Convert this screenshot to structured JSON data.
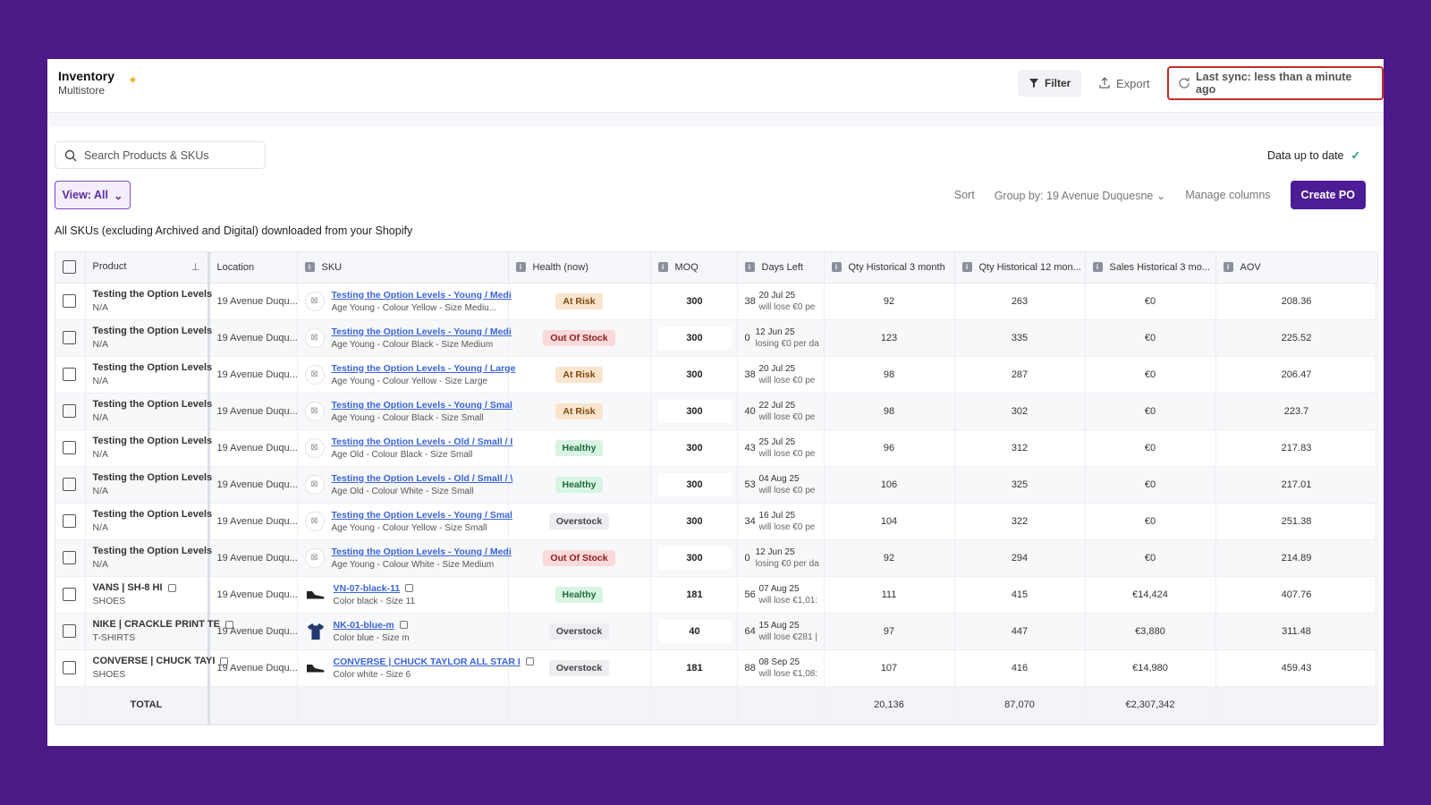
{
  "header": {
    "title": "Inventory",
    "subtitle": "Multistore",
    "filter_label": "Filter",
    "export_label": "Export",
    "sync_label": "Last sync: less than a minute ago"
  },
  "toolbar": {
    "search_placeholder": "Search Products & SKUs",
    "status": "Data up to date",
    "view_label": "View: All",
    "sort_label": "Sort",
    "group_label": "Group by: 19 Avenue Duquesne",
    "manage_label": "Manage columns",
    "create_label": "Create PO",
    "description": "All SKUs (excluding Archived and Digital) downloaded from your Shopify"
  },
  "columns": {
    "product": "Product",
    "location": "Location",
    "sku": "SKU",
    "health": "Health (now)",
    "moq": "MOQ",
    "days_left": "Days Left",
    "qty3": "Qty Historical 3 month",
    "qty12": "Qty Historical 12 mon...",
    "sales3": "Sales Historical 3 mo...",
    "aov": "AOV"
  },
  "rows": [
    {
      "product": "Testing the Option Levels",
      "category": "N/A",
      "location": "19 Avenue Duqu...",
      "sku": "Testing the Option Levels - Young / Medi",
      "variant": "Age Young - Colour Yellow - Size Mediu...",
      "thumb": "placeholder",
      "health": "At Risk",
      "moq": "300",
      "days": "38",
      "date": "20 Jul 25",
      "note": "will lose €0 pe",
      "qty3": "92",
      "qty12": "263",
      "sales3": "€0",
      "aov": "208.36"
    },
    {
      "product": "Testing the Option Levels",
      "category": "N/A",
      "location": "19 Avenue Duqu...",
      "sku": "Testing the Option Levels - Young / Medi",
      "variant": "Age Young - Colour Black - Size Medium",
      "thumb": "placeholder",
      "health": "Out Of Stock",
      "moq": "300",
      "days": "0",
      "date": "12 Jun 25",
      "note": "losing €0 per da",
      "qty3": "123",
      "qty12": "335",
      "sales3": "€0",
      "aov": "225.52"
    },
    {
      "product": "Testing the Option Levels",
      "category": "N/A",
      "location": "19 Avenue Duqu...",
      "sku": "Testing the Option Levels - Young / Large",
      "variant": "Age Young - Colour Yellow - Size Large",
      "thumb": "placeholder",
      "health": "At Risk",
      "moq": "300",
      "days": "38",
      "date": "20 Jul 25",
      "note": "will lose €0 pe",
      "qty3": "98",
      "qty12": "287",
      "sales3": "€0",
      "aov": "206.47"
    },
    {
      "product": "Testing the Option Levels",
      "category": "N/A",
      "location": "19 Avenue Duqu...",
      "sku": "Testing the Option Levels - Young / Smal",
      "variant": "Age Young - Colour Black - Size Small",
      "thumb": "placeholder",
      "health": "At Risk",
      "moq": "300",
      "days": "40",
      "date": "22 Jul 25",
      "note": "will lose €0 pe",
      "qty3": "98",
      "qty12": "302",
      "sales3": "€0",
      "aov": "223.7"
    },
    {
      "product": "Testing the Option Levels",
      "category": "N/A",
      "location": "19 Avenue Duqu...",
      "sku": "Testing the Option Levels - Old / Small / I",
      "variant": "Age Old - Colour Black - Size Small",
      "thumb": "placeholder",
      "health": "Healthy",
      "moq": "300",
      "days": "43",
      "date": "25 Jul 25",
      "note": "will lose €0 pe",
      "qty3": "96",
      "qty12": "312",
      "sales3": "€0",
      "aov": "217.83"
    },
    {
      "product": "Testing the Option Levels",
      "category": "N/A",
      "location": "19 Avenue Duqu...",
      "sku": "Testing the Option Levels - Old / Small / \\",
      "variant": "Age Old - Colour White - Size Small",
      "thumb": "placeholder",
      "health": "Healthy",
      "moq": "300",
      "days": "53",
      "date": "04 Aug 25",
      "note": "will lose €0 pe",
      "qty3": "106",
      "qty12": "325",
      "sales3": "€0",
      "aov": "217.01"
    },
    {
      "product": "Testing the Option Levels",
      "category": "N/A",
      "location": "19 Avenue Duqu...",
      "sku": "Testing the Option Levels - Young / Smal",
      "variant": "Age Young - Colour Yellow - Size Small",
      "thumb": "placeholder",
      "health": "Overstock",
      "moq": "300",
      "days": "34",
      "date": "16 Jul 25",
      "note": "will lose €0 pe",
      "qty3": "104",
      "qty12": "322",
      "sales3": "€0",
      "aov": "251.38"
    },
    {
      "product": "Testing the Option Levels",
      "category": "N/A",
      "location": "19 Avenue Duqu...",
      "sku": "Testing the Option Levels - Young / Medi",
      "variant": "Age Young - Colour White - Size Medium",
      "thumb": "placeholder",
      "health": "Out Of Stock",
      "moq": "300",
      "days": "0",
      "date": "12 Jun 25",
      "note": "losing €0 per da",
      "qty3": "92",
      "qty12": "294",
      "sales3": "€0",
      "aov": "214.89"
    },
    {
      "product": "VANS | SH-8 HI",
      "category": "SHOES",
      "location": "19 Avenue Duqu...",
      "sku": "VN-07-black-11",
      "variant": "Color black - Size 11",
      "thumb": "shoe",
      "health": "Healthy",
      "moq": "181",
      "days": "56",
      "date": "07 Aug 25",
      "note": "will lose €1,01:",
      "qty3": "111",
      "qty12": "415",
      "sales3": "€14,424",
      "aov": "407.76"
    },
    {
      "product": "NIKE | CRACKLE PRINT TE",
      "category": "T-SHIRTS",
      "location": "19 Avenue Duqu...",
      "sku": "NK-01-blue-m",
      "variant": "Color blue - Size m",
      "thumb": "shirt",
      "health": "Overstock",
      "moq": "40",
      "days": "64",
      "date": "15 Aug 25",
      "note": "will lose €281 |",
      "qty3": "97",
      "qty12": "447",
      "sales3": "€3,880",
      "aov": "311.48"
    },
    {
      "product": "CONVERSE | CHUCK TAYI",
      "category": "SHOES",
      "location": "19 Avenue Duqu...",
      "sku": "CONVERSE | CHUCK TAYLOR ALL STAR I",
      "variant": "Color white - Size 6",
      "thumb": "shoe",
      "health": "Overstock",
      "moq": "181",
      "days": "88",
      "date": "08 Sep 25",
      "note": "will lose €1,08:",
      "qty3": "107",
      "qty12": "416",
      "sales3": "€14,980",
      "aov": "459.43"
    }
  ],
  "totals": {
    "label": "TOTAL",
    "qty3": "20,136",
    "qty12": "87,070",
    "sales3": "€2,307,342"
  },
  "colors": {
    "background": "#4c1a86",
    "accent": "#4c1d95",
    "link": "#3a64d8",
    "sync_border": "#c62b2b"
  }
}
